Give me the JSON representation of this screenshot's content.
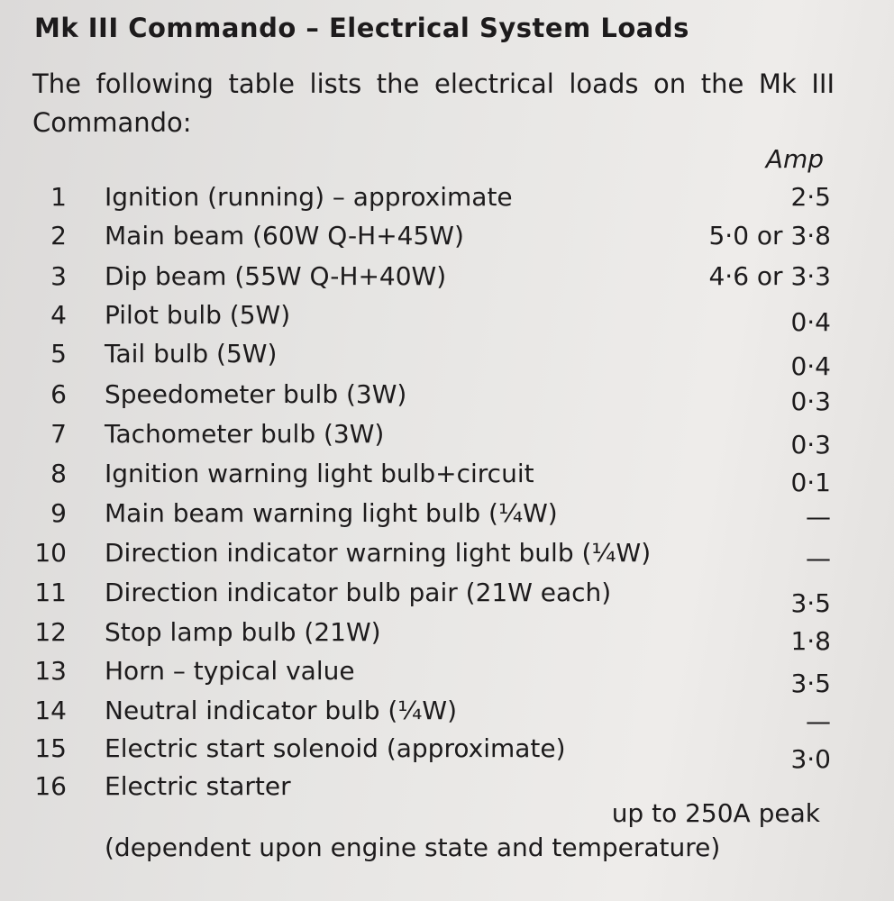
{
  "title": "Mk III Commando – Electrical System Loads",
  "intro": "The following table lists the electrical loads on the Mk III Commando:",
  "column_header": "Amp",
  "rows": [
    {
      "num": "1",
      "desc": "Ignition (running) – approximate",
      "amp": "2·5"
    },
    {
      "num": "2",
      "desc": "Main beam (60W Q-H+45W)",
      "amp": "5·0 or 3·8"
    },
    {
      "num": "3",
      "desc": "Dip beam (55W Q-H+40W)",
      "amp": "4·6 or 3·3"
    },
    {
      "num": "4",
      "desc": "Pilot bulb (5W)",
      "amp": "0·4"
    },
    {
      "num": "5",
      "desc": "Tail bulb (5W)",
      "amp": "0·4"
    },
    {
      "num": "6",
      "desc": "Speedometer bulb (3W)",
      "amp": "0·3"
    },
    {
      "num": "7",
      "desc": "Tachometer bulb (3W)",
      "amp": "0·3"
    },
    {
      "num": "8",
      "desc": "Ignition warning light bulb+circuit",
      "amp": "0·1"
    },
    {
      "num": "9",
      "desc": "Main beam warning light bulb (¼W)",
      "amp": "—"
    },
    {
      "num": "10",
      "desc": "Direction indicator warning light bulb (¼W)",
      "amp": "—"
    },
    {
      "num": "11",
      "desc": "Direction indicator bulb pair (21W each)",
      "amp": "3·5"
    },
    {
      "num": "12",
      "desc": "Stop lamp bulb (21W)",
      "amp": "1·8"
    },
    {
      "num": "13",
      "desc": "Horn – typical value",
      "amp": "3·5"
    },
    {
      "num": "14",
      "desc": "Neutral indicator bulb (¼W)",
      "amp": "—"
    },
    {
      "num": "15",
      "desc": "Electric start solenoid (approximate)",
      "amp": "3·0"
    },
    {
      "num": "16",
      "desc": "Electric  starter",
      "amp": ""
    }
  ],
  "starter_peak": "up to 250A peak",
  "starter_note": "(dependent upon engine state and temperature)"
}
